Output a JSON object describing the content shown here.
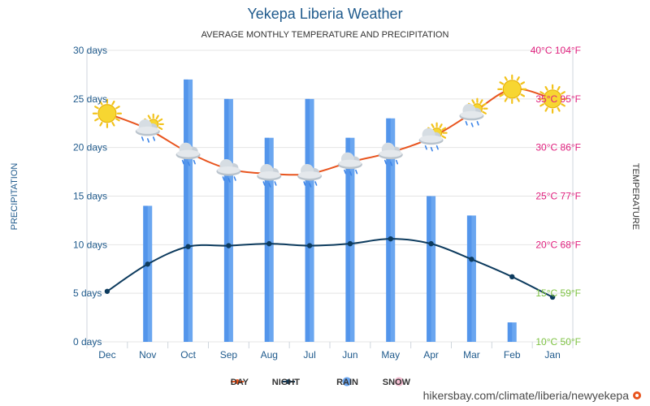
{
  "chart_data": {
    "type": "bar",
    "title": "Yekepa Liberia Weather",
    "subtitle": "AVERAGE MONTHLY TEMPERATURE AND PRECIPITATION",
    "mirrored": true,
    "categories": [
      "Jan",
      "Feb",
      "Mar",
      "Apr",
      "May",
      "Jun",
      "Jul",
      "Aug",
      "Sep",
      "Oct",
      "Nov",
      "Dec"
    ],
    "y_left": {
      "label": "PRECIPITATION",
      "ticks": [
        "0 days",
        "5 days",
        "10 days",
        "15 days",
        "20 days",
        "25 days",
        "30 days"
      ],
      "range": [
        0,
        30
      ]
    },
    "y_right": {
      "label": "TEMPERATURE",
      "ticks": [
        "10°C 50°F",
        "15°C 59°F",
        "20°C 68°F",
        "25°C 77°F",
        "30°C 86°F",
        "35°C 95°F",
        "40°C 104°F"
      ],
      "range": [
        10,
        40
      ],
      "tick_colors": [
        "#7dc242",
        "#7dc242",
        "#e0207e",
        "#e0207e",
        "#e0207e",
        "#e0207e",
        "#e0207e"
      ]
    },
    "series": [
      {
        "name": "DAY",
        "kind": "line",
        "axis": "temperature",
        "color": "#e8541e",
        "values": [
          35,
          36,
          33.5,
          31,
          29.5,
          28.5,
          27.3,
          27.3,
          27.8,
          29.5,
          31.9,
          33.5
        ],
        "icons": [
          "sun",
          "sun",
          "sun-cloud-rain",
          "sun-cloud-rain",
          "cloud-rain",
          "cloud-rain",
          "cloud-rain",
          "cloud-rain",
          "cloud-rain",
          "cloud-rain",
          "sun-cloud-rain",
          "sun"
        ]
      },
      {
        "name": "NIGHT",
        "kind": "line",
        "axis": "temperature",
        "color": "#0d3b5e",
        "values": [
          14.6,
          16.7,
          18.5,
          20.1,
          20.6,
          20.1,
          19.9,
          20.1,
          19.9,
          19.8,
          18,
          15.2
        ]
      },
      {
        "name": "RAIN",
        "kind": "bar",
        "axis": "precipitation",
        "color": "#6aa6f0",
        "dark_color": "#3f86e8",
        "values": [
          0,
          2,
          13,
          15,
          23,
          21,
          25,
          21,
          25,
          27,
          14,
          0
        ]
      },
      {
        "name": "SNOW",
        "kind": "bar",
        "axis": "precipitation",
        "color": "#f7bfd3",
        "values": [
          0,
          0,
          0,
          0,
          0,
          0,
          0,
          0,
          0,
          0,
          0,
          0
        ]
      }
    ]
  },
  "legend": [
    {
      "label": "DAY",
      "color": "#e8541e",
      "kind": "line"
    },
    {
      "label": "NIGHT",
      "color": "#0d3b5e",
      "kind": "line"
    },
    {
      "label": "RAIN",
      "color": "#6aa6f0",
      "kind": "dot"
    },
    {
      "label": "SNOW",
      "color": "#f7bfd3",
      "kind": "dot"
    }
  ],
  "source": "hikersbay.com/climate/liberia/newyekepa",
  "colors": {
    "title": "#1f5a8c",
    "axis_text": "#1f5a8c",
    "grid": "#e4e4e4",
    "source_text": "#4a4a4a",
    "pin": "#e8541e"
  }
}
